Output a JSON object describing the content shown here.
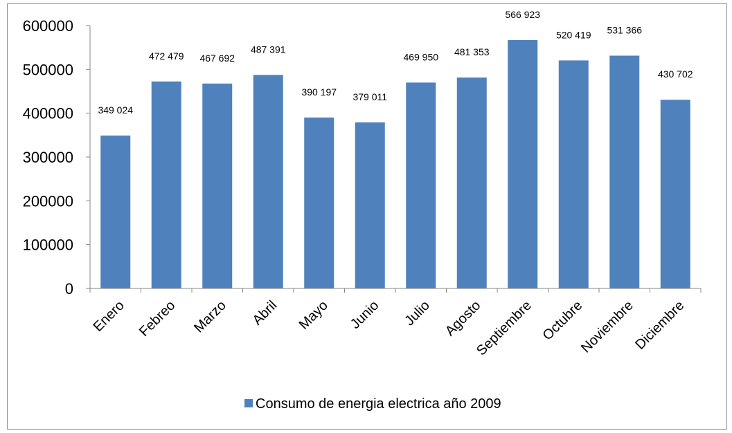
{
  "chart_data": {
    "type": "bar",
    "title": "",
    "xlabel": "",
    "ylabel": "",
    "categories": [
      "Enero",
      "Febreo",
      "Marzo",
      "Abril",
      "Mayo",
      "Junio",
      "Julio",
      "Agosto",
      "Septiembre",
      "Octubre",
      "Noviembre",
      "Diciembre"
    ],
    "series": [
      {
        "name": "Consumo de energia electrica año 2009",
        "color": "#4f81bd",
        "values": [
          349024,
          472479,
          467692,
          487391,
          390197,
          379011,
          469950,
          481353,
          566923,
          520419,
          531366,
          430702
        ]
      }
    ],
    "data_labels": [
      "349 024",
      "472 479",
      "467 692",
      "487 391",
      "390 197",
      "379 011",
      "469 950",
      "481 353",
      "566 923",
      "520 419",
      "531 366",
      "430 702"
    ],
    "y_ticks": [
      0,
      100000,
      200000,
      300000,
      400000,
      500000,
      600000
    ],
    "y_tick_labels": [
      "0",
      "100000",
      "200000",
      "300000",
      "400000",
      "500000",
      "600000"
    ],
    "ylim": [
      0,
      600000
    ],
    "grid": false,
    "legend_position": "bottom",
    "x_tick_rotation_deg": -45
  }
}
